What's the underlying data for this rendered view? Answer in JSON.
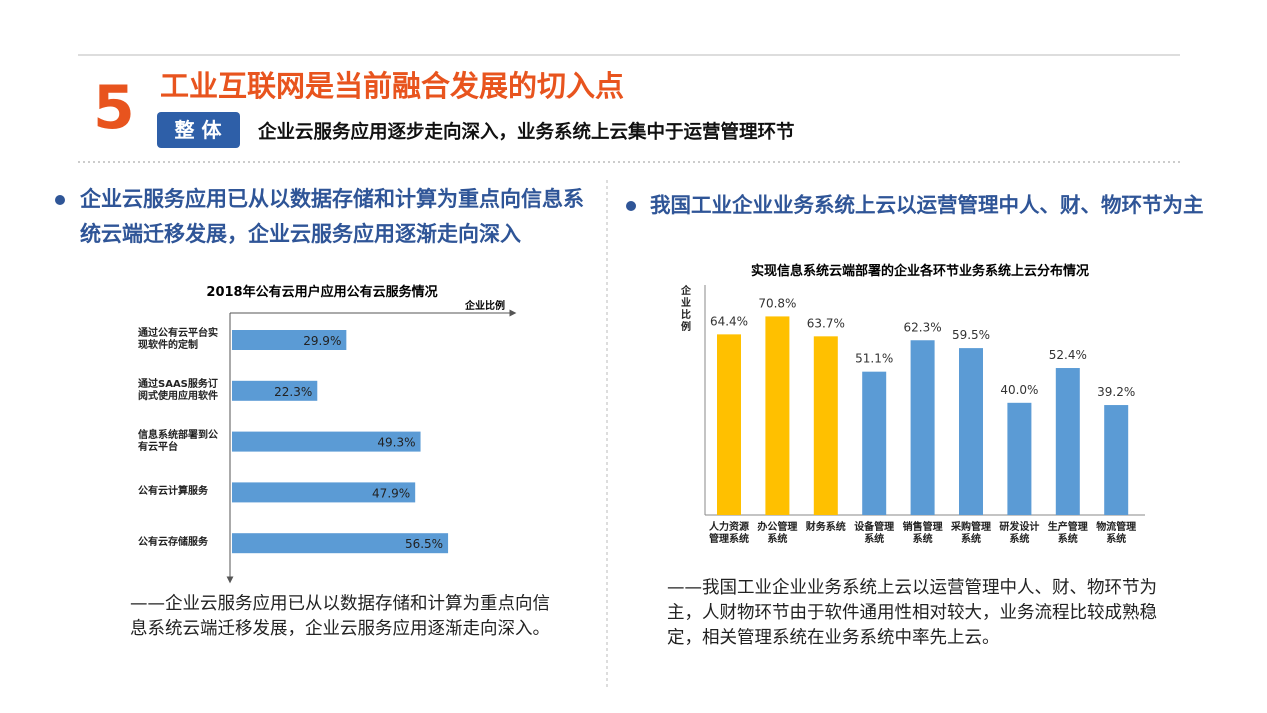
{
  "header": {
    "number": "5",
    "title": "工业互联网是当前融合发展的切入点",
    "badge": "整 体",
    "subtitle": "企业云服务应用逐步走向深入，业务系统上云集中于运营管理环节"
  },
  "left": {
    "bullet": "企业云服务应用已从以数据存储和计算为重点向信息系统云端迁移发展，企业云服务应用逐渐走向深入",
    "caption": "——企业云服务应用已从以数据存储和计算为重点向信息系统云端迁移发展，企业云服务应用逐渐走向深入。"
  },
  "right": {
    "bullet": "我国工业企业业务系统上云以运营管理中人、财、物环节为主",
    "caption": "——我国工业企业业务系统上云以运营管理中人、财、物环节为主，人财物环节由于软件通用性相对较大，业务流程比较成熟稳定，相关管理系统在业务系统中率先上云。"
  },
  "chart_data": [
    {
      "type": "barh",
      "title": "2018年公有云用户应用公有云服务情况",
      "x_label": "企业比例",
      "categories": [
        "通过公有云平台实现软件的定制",
        "通过SAAS服务订阅式使用应用软件",
        "信息系统部署到公有云平台",
        "公有云计算服务",
        "公有云存储服务"
      ],
      "values": [
        29.9,
        22.3,
        49.3,
        47.9,
        56.5
      ],
      "value_labels": [
        "29.9%",
        "22.3%",
        "49.3%",
        "47.9%",
        "56.5%"
      ],
      "color": "#5b9bd5",
      "xlim": [
        0,
        74
      ]
    },
    {
      "type": "bar",
      "title": "实现信息系统云端部署的企业各环节业务系统上云分布情况",
      "y_label": "企业比例",
      "categories": [
        "人力资源管理系统",
        "办公管理系统",
        "财务系统",
        "设备管理系统",
        "销售管理系统",
        "采购管理系统",
        "研发设计系统",
        "生产管理系统",
        "物流管理系统"
      ],
      "values": [
        64.4,
        70.8,
        63.7,
        51.1,
        62.3,
        59.5,
        40.0,
        52.4,
        39.2
      ],
      "value_labels": [
        "64.4%",
        "70.8%",
        "63.7%",
        "51.1%",
        "62.3%",
        "59.5%",
        "40.0%",
        "52.4%",
        "39.2%"
      ],
      "colors": [
        "#ffc000",
        "#ffc000",
        "#ffc000",
        "#5b9bd5",
        "#5b9bd5",
        "#5b9bd5",
        "#5b9bd5",
        "#5b9bd5",
        "#5b9bd5"
      ],
      "ylim": [
        0,
        82
      ]
    }
  ]
}
